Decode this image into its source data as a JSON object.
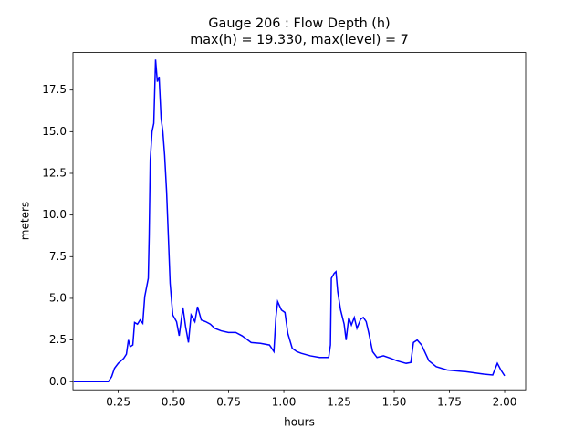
{
  "chart_data": {
    "type": "line",
    "title": "Gauge 206 : Flow Depth (h)",
    "subtitle": "max(h) =  19.330,    max(level) = 7",
    "x_label": "hours",
    "y_label": "meters",
    "x": [
      0.048,
      0.205,
      0.22,
      0.233,
      0.25,
      0.275,
      0.287,
      0.296,
      0.304,
      0.316,
      0.324,
      0.337,
      0.349,
      0.361,
      0.37,
      0.378,
      0.386,
      0.39,
      0.395,
      0.403,
      0.411,
      0.419,
      0.427,
      0.435,
      0.444,
      0.452,
      0.46,
      0.469,
      0.477,
      0.485,
      0.497,
      0.514,
      0.526,
      0.543,
      0.555,
      0.568,
      0.58,
      0.597,
      0.609,
      0.626,
      0.646,
      0.667,
      0.687,
      0.716,
      0.749,
      0.782,
      0.811,
      0.852,
      0.894,
      0.935,
      0.955,
      0.964,
      0.972,
      0.989,
      1.005,
      1.018,
      1.038,
      1.059,
      1.079,
      1.12,
      1.162,
      1.203,
      1.211,
      1.215,
      1.228,
      1.236,
      1.244,
      1.257,
      1.273,
      1.282,
      1.294,
      1.306,
      1.319,
      1.331,
      1.348,
      1.36,
      1.373,
      1.385,
      1.402,
      1.422,
      1.451,
      1.484,
      1.513,
      1.554,
      1.575,
      1.587,
      1.604,
      1.624,
      1.657,
      1.69,
      1.74,
      1.822,
      1.905,
      1.946,
      1.967,
      1.983,
      2.0
    ],
    "series": [
      {
        "name": "h",
        "color": "#0000ff",
        "values": [
          0,
          0,
          0.3,
          0.8,
          1.1,
          1.4,
          1.65,
          2.5,
          2.1,
          2.2,
          3.55,
          3.45,
          3.7,
          3.5,
          5.1,
          5.65,
          6.2,
          8.7,
          13.3,
          15.0,
          15.5,
          19.33,
          18.0,
          18.3,
          15.8,
          15.0,
          13.6,
          11.4,
          8.7,
          5.9,
          4.0,
          3.6,
          2.75,
          4.45,
          3.3,
          2.35,
          4.0,
          3.6,
          4.5,
          3.7,
          3.6,
          3.45,
          3.2,
          3.05,
          2.95,
          2.95,
          2.75,
          2.35,
          2.3,
          2.2,
          1.8,
          3.85,
          4.8,
          4.3,
          4.15,
          2.9,
          2.0,
          1.8,
          1.7,
          1.55,
          1.45,
          1.45,
          2.2,
          6.2,
          6.5,
          6.6,
          5.4,
          4.3,
          3.45,
          2.5,
          3.85,
          3.4,
          3.85,
          3.2,
          3.75,
          3.85,
          3.6,
          2.9,
          1.8,
          1.45,
          1.55,
          1.4,
          1.25,
          1.1,
          1.15,
          2.35,
          2.5,
          2.2,
          1.25,
          0.9,
          0.7,
          0.6,
          0.45,
          0.4,
          1.1,
          0.7,
          0.35
        ]
      }
    ],
    "xlim": [
      0.045,
      2.095
    ],
    "ylim": [
      -0.49,
      19.75
    ],
    "xticks": [
      {
        "value": 0.25,
        "label": "0.25"
      },
      {
        "value": 0.5,
        "label": "0.50"
      },
      {
        "value": 0.75,
        "label": "0.75"
      },
      {
        "value": 1.0,
        "label": "1.00"
      },
      {
        "value": 1.25,
        "label": "1.25"
      },
      {
        "value": 1.5,
        "label": "1.50"
      },
      {
        "value": 1.75,
        "label": "1.75"
      },
      {
        "value": 2.0,
        "label": "2.00"
      }
    ],
    "yticks": [
      {
        "value": 0,
        "label": "0.0"
      },
      2.5,
      {
        "value": 5,
        "label": "5.0"
      },
      7.5,
      {
        "value": 10,
        "label": "10.0"
      },
      12.5,
      {
        "value": 15,
        "label": "15.0"
      },
      17.5
    ],
    "grid": false
  }
}
